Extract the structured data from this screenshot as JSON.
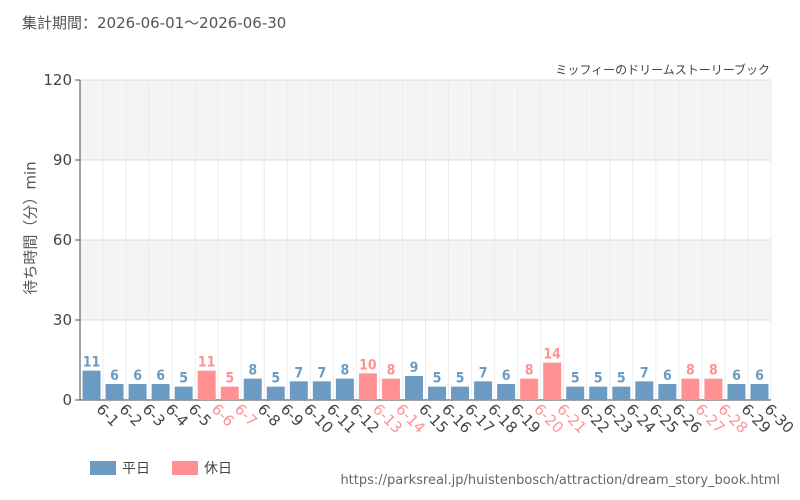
{
  "header": {
    "period": "集計期間：2026-06-01～2026-06-30",
    "attraction": "ミッフィーのドリームストーリーブック"
  },
  "legend": {
    "weekday_label": "平日",
    "holiday_label": "休日"
  },
  "source_url": "https://parksreal.jp/huistenbosch/attraction/dream_story_book.html",
  "colors": {
    "weekday": "#6b9bc3",
    "holiday": "#ff9193",
    "grid": "#dddddd",
    "band": "#f4f4f4"
  },
  "chart_data": {
    "type": "bar",
    "ylabel": "待ち時間（分）min",
    "ylim": [
      0,
      120
    ],
    "yticks": [
      0,
      30,
      60,
      90,
      120
    ],
    "grid": true,
    "legend_position": "bottom-left",
    "categories": [
      "6-1",
      "6-2",
      "6-3",
      "6-4",
      "6-5",
      "6-6",
      "6-7",
      "6-8",
      "6-9",
      "6-10",
      "6-11",
      "6-12",
      "6-13",
      "6-14",
      "6-15",
      "6-16",
      "6-17",
      "6-18",
      "6-19",
      "6-20",
      "6-21",
      "6-22",
      "6-23",
      "6-24",
      "6-25",
      "6-26",
      "6-27",
      "6-28",
      "6-29",
      "6-30"
    ],
    "values": [
      11,
      6,
      6,
      6,
      5,
      11,
      5,
      8,
      5,
      7,
      7,
      8,
      10,
      8,
      9,
      5,
      5,
      7,
      6,
      8,
      14,
      5,
      5,
      5,
      7,
      6,
      8,
      8,
      6,
      6
    ],
    "day_type": [
      "平日",
      "平日",
      "平日",
      "平日",
      "平日",
      "休日",
      "休日",
      "平日",
      "平日",
      "平日",
      "平日",
      "平日",
      "休日",
      "休日",
      "平日",
      "平日",
      "平日",
      "平日",
      "平日",
      "休日",
      "休日",
      "平日",
      "平日",
      "平日",
      "平日",
      "平日",
      "休日",
      "休日",
      "平日",
      "平日"
    ]
  }
}
